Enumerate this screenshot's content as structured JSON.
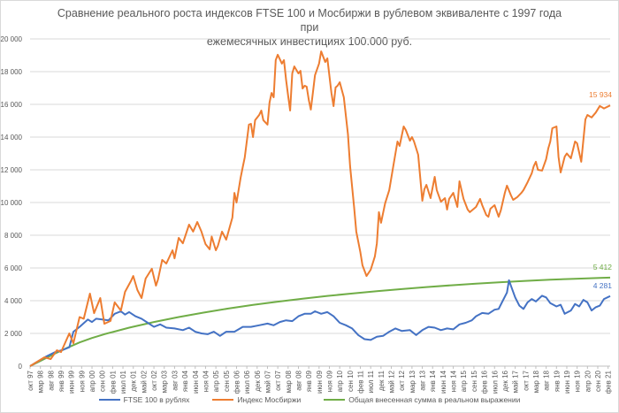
{
  "chart_data": {
    "type": "line",
    "title_line1": "Сравнение реального роста индексов FTSE 100 и Мосбиржи в рублевом эквиваленте с 1997 года при",
    "title_line2": "ежемесячных инвестициях 100.000 руб.",
    "xlabel": "",
    "ylabel": "",
    "ylim": [
      0,
      20000
    ],
    "grid": true,
    "legend_position": "bottom",
    "y_ticks": [
      "0",
      "2 000",
      "4 000",
      "6 000",
      "8 000",
      "10 000",
      "12 000",
      "14 000",
      "16 000",
      "18 000",
      "20 000"
    ],
    "x_tick_labels": [
      "окт 97",
      "мар 98",
      "авг 98",
      "янв 99",
      "июн 99",
      "ноя 99",
      "апр 00",
      "сен 00",
      "фев 01",
      "июл 01",
      "дек 01",
      "май 02",
      "окт 02",
      "мар 03",
      "авг 03",
      "янв 04",
      "июн 04",
      "ноя 04",
      "апр 05",
      "сен 05",
      "фев 06",
      "июл 06",
      "дек 06",
      "май 07",
      "окт 07",
      "мар 08",
      "авг 08",
      "янв 09",
      "июн 09",
      "ноя 09",
      "апр 10",
      "сен 10",
      "фев 11",
      "июл 11",
      "дек 11",
      "май 12",
      "окт 12",
      "мар 13",
      "авг 13",
      "янв 14",
      "июн 14",
      "ноя 14",
      "апр 15",
      "сен 15",
      "фев 16",
      "июл 16",
      "дек 16",
      "май 17",
      "окт 17",
      "мар 18",
      "авг 18",
      "янв 19",
      "июн 19",
      "ноя 19",
      "апр 20",
      "сен 20",
      "фев 21"
    ],
    "x_months_total": 281,
    "series": [
      {
        "name": "FTSE 100 в рублях",
        "color": "#4472c4",
        "end_label": "4 281",
        "points": [
          [
            0,
            0
          ],
          [
            4,
            300
          ],
          [
            8,
            600
          ],
          [
            12,
            850
          ],
          [
            16,
            1000
          ],
          [
            19,
            1150
          ],
          [
            21,
            2100
          ],
          [
            24,
            2400
          ],
          [
            28,
            2850
          ],
          [
            30,
            2700
          ],
          [
            32,
            2900
          ],
          [
            35,
            2850
          ],
          [
            38,
            2800
          ],
          [
            41,
            3200
          ],
          [
            44,
            3350
          ],
          [
            46,
            3150
          ],
          [
            48,
            3300
          ],
          [
            51,
            3050
          ],
          [
            54,
            2900
          ],
          [
            57,
            2650
          ],
          [
            60,
            2400
          ],
          [
            63,
            2550
          ],
          [
            66,
            2350
          ],
          [
            70,
            2300
          ],
          [
            74,
            2200
          ],
          [
            77,
            2350
          ],
          [
            80,
            2100
          ],
          [
            83,
            2000
          ],
          [
            86,
            1950
          ],
          [
            89,
            2100
          ],
          [
            92,
            1850
          ],
          [
            95,
            2100
          ],
          [
            99,
            2100
          ],
          [
            103,
            2400
          ],
          [
            107,
            2400
          ],
          [
            111,
            2500
          ],
          [
            115,
            2600
          ],
          [
            118,
            2500
          ],
          [
            121,
            2700
          ],
          [
            124,
            2800
          ],
          [
            127,
            2750
          ],
          [
            130,
            3050
          ],
          [
            133,
            3200
          ],
          [
            136,
            3200
          ],
          [
            138,
            3350
          ],
          [
            141,
            3200
          ],
          [
            144,
            3300
          ],
          [
            147,
            3050
          ],
          [
            150,
            2650
          ],
          [
            153,
            2500
          ],
          [
            156,
            2300
          ],
          [
            159,
            1900
          ],
          [
            162,
            1650
          ],
          [
            165,
            1600
          ],
          [
            168,
            1800
          ],
          [
            171,
            1850
          ],
          [
            174,
            2100
          ],
          [
            177,
            2300
          ],
          [
            180,
            2150
          ],
          [
            184,
            2200
          ],
          [
            187,
            1900
          ],
          [
            190,
            2200
          ],
          [
            193,
            2400
          ],
          [
            196,
            2350
          ],
          [
            199,
            2200
          ],
          [
            202,
            2300
          ],
          [
            205,
            2250
          ],
          [
            208,
            2550
          ],
          [
            211,
            2650
          ],
          [
            214,
            2800
          ],
          [
            216,
            3050
          ],
          [
            219,
            3250
          ],
          [
            222,
            3200
          ],
          [
            225,
            3450
          ],
          [
            227,
            3500
          ],
          [
            229,
            4000
          ],
          [
            231,
            4500
          ],
          [
            232,
            5250
          ],
          [
            233,
            4900
          ],
          [
            235,
            4200
          ],
          [
            237,
            3700
          ],
          [
            239,
            3500
          ],
          [
            241,
            3900
          ],
          [
            243,
            4100
          ],
          [
            245,
            3950
          ],
          [
            248,
            4300
          ],
          [
            250,
            4200
          ],
          [
            252,
            3850
          ],
          [
            255,
            3650
          ],
          [
            257,
            3750
          ],
          [
            259,
            3200
          ],
          [
            262,
            3400
          ],
          [
            264,
            3800
          ],
          [
            266,
            3650
          ],
          [
            268,
            4050
          ],
          [
            270,
            3900
          ],
          [
            272,
            3400
          ],
          [
            274,
            3600
          ],
          [
            276,
            3700
          ],
          [
            278,
            4100
          ],
          [
            281,
            4281
          ]
        ]
      },
      {
        "name": "Индекс Мосбиржи",
        "color": "#ed7d31",
        "end_label": "15 934",
        "points": [
          [
            0,
            0
          ],
          [
            7,
            540
          ],
          [
            10,
            430
          ],
          [
            13,
            970
          ],
          [
            15,
            860
          ],
          [
            19,
            2000
          ],
          [
            21,
            1400
          ],
          [
            24,
            3000
          ],
          [
            26,
            2900
          ],
          [
            29,
            4430
          ],
          [
            31,
            3240
          ],
          [
            34,
            4160
          ],
          [
            36,
            2590
          ],
          [
            39,
            2760
          ],
          [
            41,
            3900
          ],
          [
            44,
            3400
          ],
          [
            46,
            4540
          ],
          [
            49,
            5240
          ],
          [
            50,
            5510
          ],
          [
            52,
            4650
          ],
          [
            54,
            4160
          ],
          [
            56,
            5350
          ],
          [
            59,
            5950
          ],
          [
            61,
            4920
          ],
          [
            62,
            5300
          ],
          [
            64,
            6490
          ],
          [
            66,
            6270
          ],
          [
            69,
            7080
          ],
          [
            70,
            6590
          ],
          [
            72,
            7840
          ],
          [
            74,
            7510
          ],
          [
            77,
            8650
          ],
          [
            79,
            8220
          ],
          [
            81,
            8810
          ],
          [
            83,
            8220
          ],
          [
            85,
            7460
          ],
          [
            87,
            7140
          ],
          [
            88,
            7920
          ],
          [
            90,
            7080
          ],
          [
            91,
            7350
          ],
          [
            93,
            8220
          ],
          [
            95,
            7730
          ],
          [
            98,
            9080
          ],
          [
            99,
            10590
          ],
          [
            100,
            10000
          ],
          [
            102,
            11510
          ],
          [
            103,
            12160
          ],
          [
            104,
            12760
          ],
          [
            106,
            14760
          ],
          [
            107,
            14810
          ],
          [
            108,
            14000
          ],
          [
            109,
            15030
          ],
          [
            111,
            15350
          ],
          [
            112,
            15620
          ],
          [
            113,
            15030
          ],
          [
            115,
            14760
          ],
          [
            116,
            16110
          ],
          [
            117,
            16700
          ],
          [
            118,
            16430
          ],
          [
            119,
            18700
          ],
          [
            120,
            19030
          ],
          [
            122,
            18490
          ],
          [
            123,
            18700
          ],
          [
            124,
            17510
          ],
          [
            125,
            16540
          ],
          [
            126,
            15620
          ],
          [
            127,
            17890
          ],
          [
            128,
            18320
          ],
          [
            130,
            17890
          ],
          [
            131,
            18050
          ],
          [
            132,
            16970
          ],
          [
            133,
            17140
          ],
          [
            134,
            17080
          ],
          [
            135,
            16270
          ],
          [
            136,
            15680
          ],
          [
            137,
            16700
          ],
          [
            138,
            17780
          ],
          [
            140,
            18490
          ],
          [
            141,
            19240
          ],
          [
            143,
            18590
          ],
          [
            144,
            18810
          ],
          [
            146,
            16700
          ],
          [
            147,
            15890
          ],
          [
            148,
            17030
          ],
          [
            149,
            17140
          ],
          [
            150,
            17350
          ],
          [
            152,
            16430
          ],
          [
            154,
            14160
          ],
          [
            155,
            12220
          ],
          [
            157,
            9680
          ],
          [
            158,
            8220
          ],
          [
            160,
            6970
          ],
          [
            161,
            6160
          ],
          [
            163,
            5510
          ],
          [
            165,
            5890
          ],
          [
            167,
            6700
          ],
          [
            168,
            7510
          ],
          [
            169,
            9410
          ],
          [
            170,
            8760
          ],
          [
            172,
            9950
          ],
          [
            174,
            10760
          ],
          [
            176,
            12270
          ],
          [
            178,
            13730
          ],
          [
            179,
            13460
          ],
          [
            181,
            14650
          ],
          [
            182,
            14430
          ],
          [
            184,
            13780
          ],
          [
            185,
            14000
          ],
          [
            186,
            13730
          ],
          [
            188,
            12920
          ],
          [
            190,
            10110
          ],
          [
            191,
            10810
          ],
          [
            192,
            11080
          ],
          [
            194,
            10270
          ],
          [
            196,
            11570
          ],
          [
            197,
            10760
          ],
          [
            199,
            10050
          ],
          [
            201,
            10270
          ],
          [
            202,
            9570
          ],
          [
            203,
            10220
          ],
          [
            205,
            10590
          ],
          [
            207,
            9730
          ],
          [
            208,
            11300
          ],
          [
            210,
            10220
          ],
          [
            212,
            9570
          ],
          [
            213,
            9410
          ],
          [
            216,
            9730
          ],
          [
            218,
            10220
          ],
          [
            219,
            9840
          ],
          [
            221,
            9240
          ],
          [
            222,
            9130
          ],
          [
            223,
            9620
          ],
          [
            225,
            9840
          ],
          [
            227,
            9130
          ],
          [
            228,
            9510
          ],
          [
            230,
            10590
          ],
          [
            231,
            11030
          ],
          [
            233,
            10430
          ],
          [
            234,
            10160
          ],
          [
            236,
            10330
          ],
          [
            238,
            10590
          ],
          [
            239,
            10760
          ],
          [
            241,
            11240
          ],
          [
            243,
            11780
          ],
          [
            244,
            12220
          ],
          [
            245,
            12490
          ],
          [
            246,
            12000
          ],
          [
            248,
            11950
          ],
          [
            250,
            12650
          ],
          [
            251,
            13300
          ],
          [
            252,
            13730
          ],
          [
            253,
            14540
          ],
          [
            255,
            14650
          ],
          [
            256,
            12800
          ],
          [
            257,
            11840
          ],
          [
            259,
            12800
          ],
          [
            260,
            13000
          ],
          [
            262,
            12700
          ],
          [
            264,
            13730
          ],
          [
            265,
            13620
          ],
          [
            267,
            12490
          ],
          [
            269,
            15080
          ],
          [
            270,
            15350
          ],
          [
            272,
            15200
          ],
          [
            274,
            15500
          ],
          [
            276,
            15900
          ],
          [
            278,
            15750
          ],
          [
            281,
            15934
          ]
        ]
      },
      {
        "name": "Общая внесенная сумма в реальном выражении",
        "color": "#70ad47",
        "end_label": "5 412",
        "points": [
          [
            0,
            0
          ],
          [
            6,
            380
          ],
          [
            12,
            760
          ],
          [
            18,
            1120
          ],
          [
            24,
            1450
          ],
          [
            30,
            1720
          ],
          [
            36,
            1950
          ],
          [
            48,
            2350
          ],
          [
            60,
            2700
          ],
          [
            72,
            3000
          ],
          [
            84,
            3270
          ],
          [
            96,
            3520
          ],
          [
            108,
            3740
          ],
          [
            120,
            3940
          ],
          [
            132,
            4120
          ],
          [
            144,
            4290
          ],
          [
            156,
            4440
          ],
          [
            168,
            4580
          ],
          [
            180,
            4710
          ],
          [
            192,
            4830
          ],
          [
            204,
            4940
          ],
          [
            216,
            5040
          ],
          [
            228,
            5130
          ],
          [
            240,
            5210
          ],
          [
            252,
            5280
          ],
          [
            264,
            5340
          ],
          [
            276,
            5390
          ],
          [
            281,
            5412
          ]
        ]
      }
    ]
  }
}
